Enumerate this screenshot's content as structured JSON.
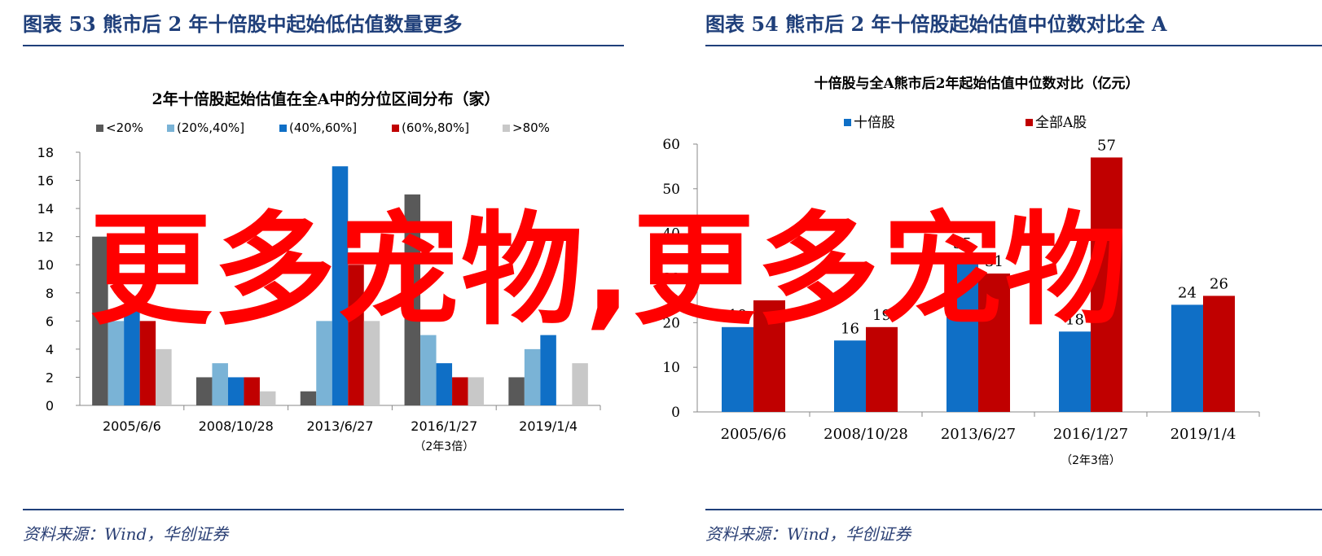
{
  "watermark_text": "更多宠物,更多宠物",
  "colors": {
    "header_blue": "#1f3f7a",
    "c_lt20": "#595959",
    "c_20_40": "#7ab3d6",
    "c_40_60": "#0f6fc6",
    "c_60_80": "#c00000",
    "c_gt80": "#c8c8c8",
    "c_tenbagger": "#0f6fc6",
    "c_alla": "#c00000"
  },
  "left": {
    "fig_title": "图表 53   熊市后 2 年十倍股中起始低估值数量更多",
    "source": "资料来源：Wind，华创证券"
  },
  "right": {
    "fig_title": "图表 54   熊市后 2 年十倍股起始估值中位数对比全 A",
    "source": "资料来源：Wind，华创证券"
  },
  "chart_data": [
    {
      "type": "bar",
      "title": "2年十倍股起始估值在全A中的分位区间分布（家）",
      "categories": [
        "2005/6/6",
        "2008/10/28",
        "2013/6/27",
        "2016/1/27",
        "2019/1/4"
      ],
      "category_sublabels": [
        "",
        "",
        "",
        "（2年3倍）",
        ""
      ],
      "series": [
        {
          "name": "<20%",
          "values": [
            12,
            2,
            1,
            15,
            2
          ]
        },
        {
          "name": "(20%,40%]",
          "values": [
            6,
            3,
            6,
            5,
            4
          ]
        },
        {
          "name": "(40%,60%]",
          "values": [
            7,
            2,
            17,
            3,
            5
          ]
        },
        {
          "name": "(60%,80%]",
          "values": [
            6,
            2,
            10,
            2,
            0
          ]
        },
        {
          "name": ">80%",
          "values": [
            4,
            1,
            6,
            2,
            3
          ]
        }
      ],
      "ylim": [
        0,
        18
      ],
      "yticks": [
        0,
        2,
        4,
        6,
        8,
        10,
        12,
        14,
        16,
        18
      ],
      "legend": "top",
      "grid": false
    },
    {
      "type": "bar",
      "title": "十倍股与全A熊市后2年起始估值中位数对比（亿元）",
      "categories": [
        "2005/6/6",
        "2008/10/28",
        "2013/6/27",
        "2016/1/27",
        "2019/1/4"
      ],
      "category_sublabels": [
        "",
        "",
        "",
        "（2年3倍）",
        ""
      ],
      "series": [
        {
          "name": "十倍股",
          "values": [
            19,
            16,
            35,
            18,
            24
          ]
        },
        {
          "name": "全部A股",
          "values": [
            25,
            19,
            31,
            57,
            26
          ]
        }
      ],
      "data_labels": [
        [
          "19",
          "16",
          "35",
          "18",
          "24"
        ],
        [
          "",
          "19",
          "31",
          "57",
          "26"
        ]
      ],
      "ylim": [
        0,
        60
      ],
      "yticks": [
        0,
        10,
        20,
        30,
        40,
        50,
        60
      ],
      "legend": "top",
      "grid": false
    }
  ]
}
